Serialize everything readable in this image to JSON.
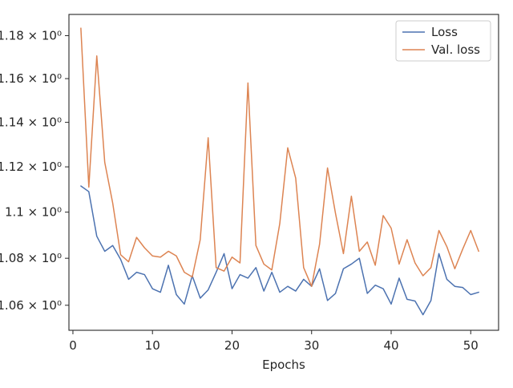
{
  "chart_data": {
    "type": "line",
    "title": "",
    "xlabel": "Epochs",
    "ylabel": "",
    "yscale": "log",
    "xlim": [
      -0.5,
      53.5
    ],
    "ylim": [
      1.0495,
      1.19
    ],
    "grid": false,
    "legend_position": "upper right",
    "x_ticks": [
      0,
      10,
      20,
      30,
      40,
      50
    ],
    "x_tick_labels": [
      "0",
      "10",
      "20",
      "30",
      "40",
      "50"
    ],
    "y_ticks": [
      1.06,
      1.08,
      1.1,
      1.12,
      1.14,
      1.16,
      1.18
    ],
    "y_tick_labels": [
      "1.06 × 10⁰",
      "1.08 × 10⁰",
      "1.1 × 10⁰",
      "1.12 × 10⁰",
      "1.14 × 10⁰",
      "1.16 × 10⁰",
      "1.18 × 10⁰"
    ],
    "x": [
      1,
      2,
      3,
      4,
      5,
      6,
      7,
      8,
      9,
      10,
      11,
      12,
      13,
      14,
      15,
      16,
      17,
      18,
      19,
      20,
      21,
      22,
      23,
      24,
      25,
      26,
      27,
      28,
      29,
      30,
      31,
      32,
      33,
      34,
      35,
      36,
      37,
      38,
      39,
      40,
      41,
      42,
      43,
      44,
      45,
      46,
      47,
      48,
      49,
      50,
      51
    ],
    "series": [
      {
        "name": "Loss",
        "color": "#4c72b0",
        "values": [
          1.1115,
          1.109,
          1.0895,
          1.083,
          1.0855,
          1.0795,
          1.071,
          1.074,
          1.073,
          1.067,
          1.0655,
          1.077,
          1.0645,
          1.0605,
          1.0725,
          1.063,
          1.0665,
          1.074,
          1.082,
          1.067,
          1.073,
          1.0715,
          1.076,
          1.066,
          1.074,
          1.0655,
          1.068,
          1.066,
          1.071,
          1.068,
          1.0755,
          1.062,
          1.065,
          1.0755,
          1.0775,
          1.08,
          1.065,
          1.0685,
          1.067,
          1.0605,
          1.0715,
          1.0625,
          1.0618,
          1.056,
          1.062,
          1.082,
          1.071,
          1.068,
          1.0675,
          1.0645,
          1.0655
        ]
      },
      {
        "name": "Val. loss",
        "color": "#dd8452",
        "values": [
          1.1835,
          1.111,
          1.1705,
          1.122,
          1.104,
          1.0815,
          1.0785,
          1.089,
          1.0845,
          1.081,
          1.0805,
          1.083,
          1.081,
          1.074,
          1.072,
          1.088,
          1.133,
          1.076,
          1.0745,
          1.0805,
          1.078,
          1.158,
          1.0855,
          1.0775,
          1.075,
          1.095,
          1.1285,
          1.115,
          1.076,
          1.068,
          1.086,
          1.1195,
          1.0995,
          1.082,
          1.107,
          1.083,
          1.087,
          1.077,
          1.0985,
          1.093,
          1.0775,
          1.088,
          1.078,
          1.0725,
          1.076,
          1.092,
          1.085,
          1.0755,
          1.084,
          1.092,
          1.083
        ]
      }
    ]
  }
}
